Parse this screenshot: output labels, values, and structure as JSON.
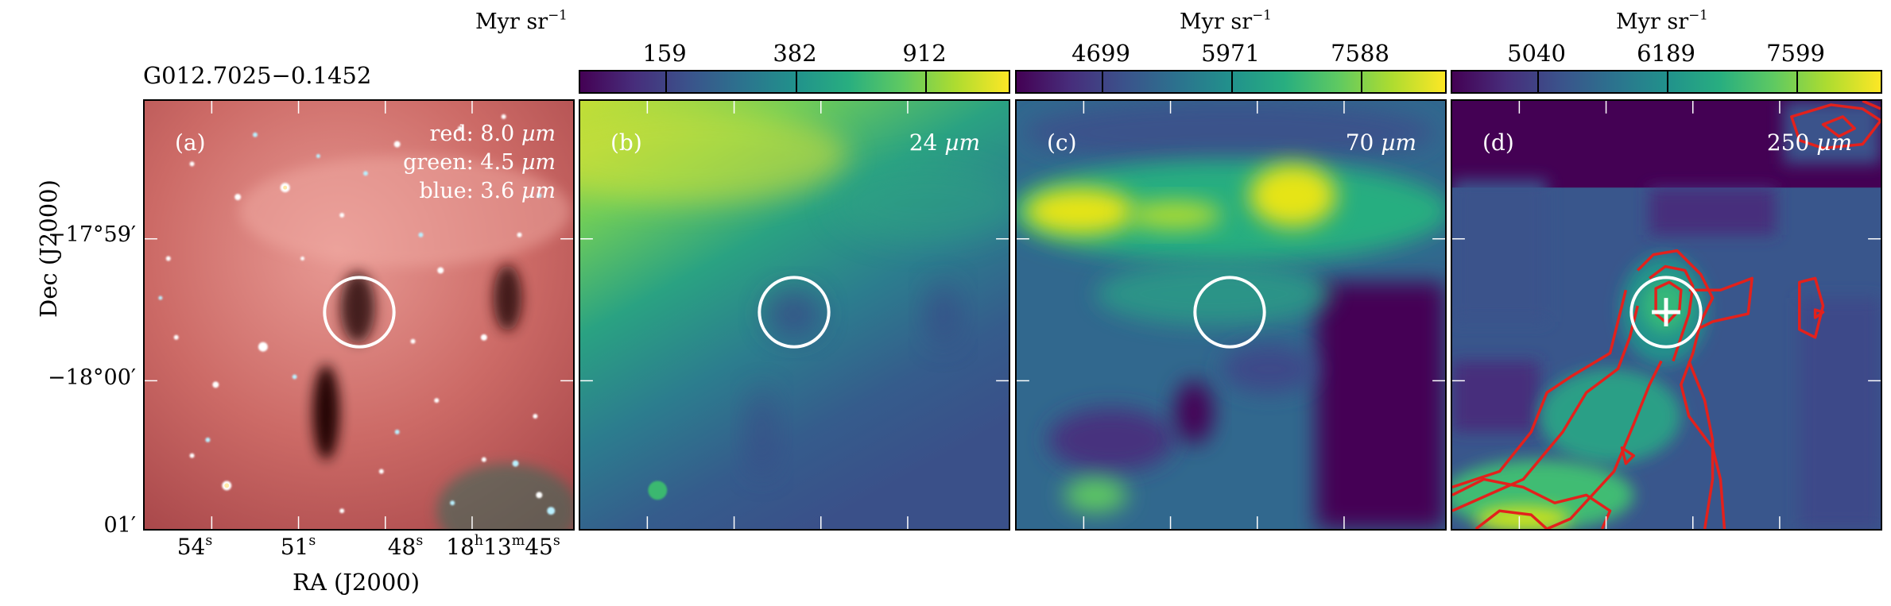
{
  "figure": {
    "source_name": "G012.7025−0.1452",
    "panels": [
      {
        "id": "a",
        "label": "(a)",
        "lines": [
          {
            "text": "red: 8.0",
            "unit": "µm"
          },
          {
            "text": "green: 4.5",
            "unit": "µm"
          },
          {
            "text": "blue: 3.6",
            "unit": "µm"
          }
        ]
      },
      {
        "id": "b",
        "label": "(b)",
        "wavelength": "24",
        "unit": "µm"
      },
      {
        "id": "c",
        "label": "(c)",
        "wavelength": "70",
        "unit": "µm"
      },
      {
        "id": "d",
        "label": "(d)",
        "wavelength": "250",
        "unit": "µm"
      }
    ],
    "colorbars": [
      {
        "unit": "Myr sr",
        "unit_exp": "−1",
        "ticks": [
          "159",
          "382",
          "912"
        ]
      },
      {
        "unit": "Myr sr",
        "unit_exp": "−1",
        "ticks": [
          "4699",
          "5971",
          "7588"
        ]
      },
      {
        "unit": "Myr sr",
        "unit_exp": "−1",
        "ticks": [
          "5040",
          "6189",
          "7599"
        ]
      }
    ],
    "axes": {
      "ylabel": "Dec (J2000)",
      "xlabel": "RA (J2000)",
      "y_ticks": [
        "−17°59′",
        "−18°00′",
        "01′"
      ],
      "x_ticks": [
        {
          "base": "54",
          "sup": "s"
        },
        {
          "base": "51",
          "sup": "s"
        },
        {
          "base": "48",
          "sup": "s"
        },
        {
          "base": "18",
          "sup": "h",
          "base2": "13",
          "sup2": "m",
          "base3": "45",
          "sup3": "s"
        }
      ]
    },
    "colors": {
      "ring": "#ffffff",
      "contour": "#e3211c",
      "frame": "#000000"
    },
    "colormap": "viridis"
  }
}
